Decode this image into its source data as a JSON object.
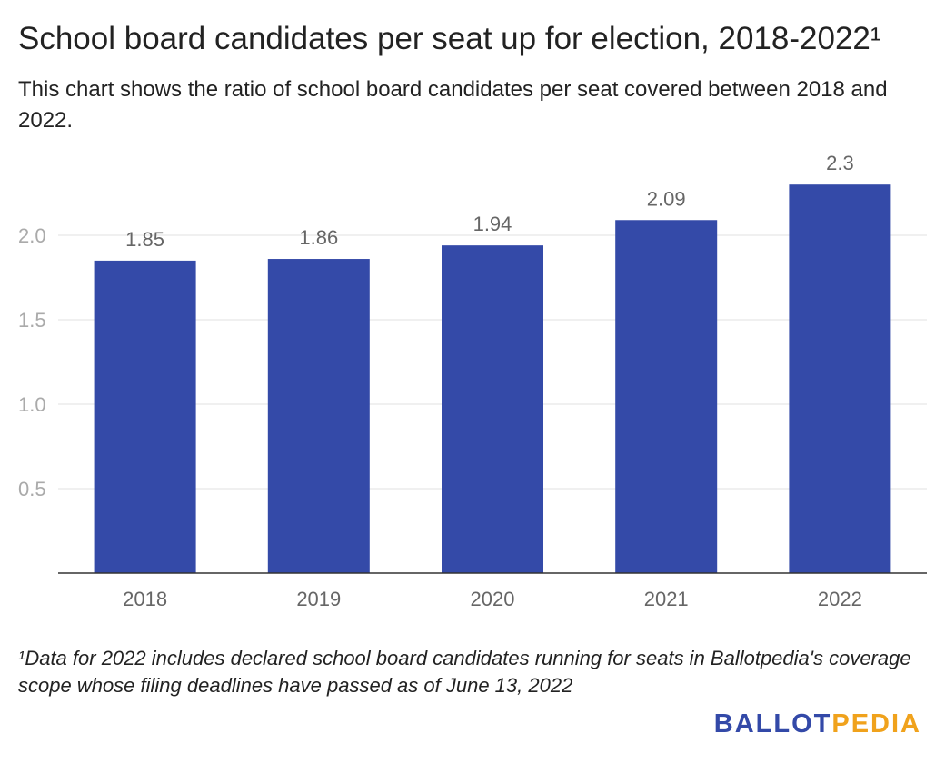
{
  "title": "School board candidates per seat up for election, 2018-2022¹",
  "subtitle": "This chart shows the ratio of school board candidates per seat covered between 2018 and 2022.",
  "footnote": "¹Data for 2022 includes declared school board candidates running for seats in Ballotpedia's coverage scope whose filing deadlines have passed as of June 13, 2022",
  "brand": {
    "logo_part1": "BALLOT",
    "logo_part2": "PEDIA",
    "color_primary": "#3349a8",
    "color_secondary": "#f0a21c"
  },
  "chart_data": {
    "type": "bar",
    "categories": [
      "2018",
      "2019",
      "2020",
      "2021",
      "2022"
    ],
    "values": [
      1.85,
      1.86,
      1.94,
      2.09,
      2.3
    ],
    "value_labels": [
      "1.85",
      "1.86",
      "1.94",
      "2.09",
      "2.3"
    ],
    "title": "School board candidates per seat up for election, 2018-2022¹",
    "xlabel": "",
    "ylabel": "",
    "ylim": [
      0,
      2.5
    ],
    "yticks": [
      0.5,
      1.0,
      1.5,
      2.0
    ],
    "ytick_labels": [
      "0.5",
      "1.0",
      "1.5",
      "2.0"
    ],
    "grid": true,
    "legend": "none",
    "bar_color": "#344aa8"
  }
}
